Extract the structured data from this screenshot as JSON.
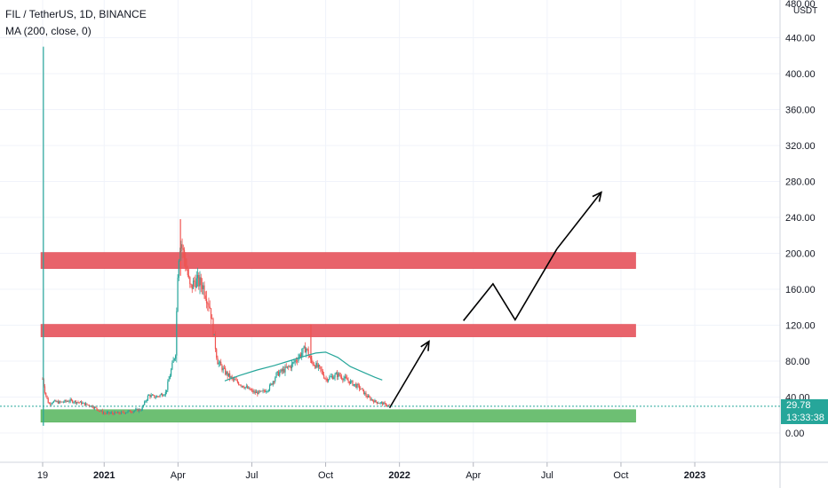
{
  "header": {
    "symbol_line": "FIL / TetherUS, 1D, BINANCE",
    "indicator_line": "MA (200, close, 0)"
  },
  "price_axis": {
    "unit": "USDT",
    "top_partial_label": "480.00"
  },
  "last_price": {
    "value": "29.78",
    "countdown": "13:33:38"
  },
  "colors": {
    "up": "#26a69a",
    "down": "#ef5350",
    "ma": "#26a69a",
    "resistance_zone": "#e8636b",
    "support_zone": "#6dbf73",
    "arrow": "#000000",
    "grid": "#f0f3fa",
    "axis_text": "#131722"
  },
  "chart_data": {
    "type": "candlestick",
    "title": "FIL / TetherUS, 1D, BINANCE",
    "ylim": [
      -20,
      485
    ],
    "y_ticks": [
      0,
      40,
      80,
      120,
      160,
      200,
      240,
      280,
      320,
      360,
      400,
      440
    ],
    "y_tick_labels": [
      "0.00",
      "40.00",
      "80.00",
      "120.00",
      "160.00",
      "200.00",
      "240.00",
      "280.00",
      "320.00",
      "360.00",
      "400.00",
      "440.00"
    ],
    "x_ticks": [
      "19",
      "2021",
      "Apr",
      "Jul",
      "Oct",
      "2022",
      "Apr",
      "Jul",
      "Oct",
      "2023"
    ],
    "x_tick_months": [
      9.5,
      12,
      15,
      18,
      21,
      24,
      27,
      30,
      33,
      36
    ],
    "price_path_months": [
      9.5,
      9.6,
      9.75,
      9.9,
      10.2,
      10.6,
      11.0,
      11.5,
      12.0,
      12.6,
      13.0,
      13.5,
      13.8,
      14.1,
      14.5,
      14.9,
      15.0,
      15.1,
      15.3,
      15.5,
      15.7,
      16.0,
      16.3,
      16.6,
      16.9,
      17.2,
      17.5,
      17.8,
      18.1,
      18.4,
      18.7,
      19.0,
      19.3,
      19.6,
      19.9,
      20.2,
      20.4,
      20.6,
      20.8,
      21.0,
      21.2,
      21.5,
      21.8,
      22.1,
      22.4,
      22.7,
      23.0,
      23.3,
      23.6
    ],
    "price_path_values": [
      60,
      45,
      32,
      35,
      34,
      36,
      34,
      30,
      22,
      22,
      24,
      26,
      42,
      40,
      45,
      90,
      190,
      215,
      190,
      160,
      170,
      165,
      140,
      80,
      68,
      60,
      55,
      50,
      45,
      45,
      50,
      65,
      70,
      75,
      85,
      95,
      80,
      75,
      70,
      60,
      62,
      65,
      60,
      55,
      50,
      40,
      35,
      33,
      30
    ],
    "spike_wicks": [
      {
        "month": 9.53,
        "high": 430,
        "low": 8
      },
      {
        "month": 15.1,
        "high": 238,
        "low": 175
      },
      {
        "month": 20.4,
        "high": 121,
        "low": 78
      }
    ],
    "ma200_months": [
      16.9,
      17.5,
      18.2,
      18.9,
      19.5,
      20.2,
      20.6,
      21.0,
      21.5,
      22.0,
      22.5,
      23.0,
      23.3
    ],
    "ma200_values": [
      58,
      64,
      70,
      75,
      80,
      86,
      89,
      90,
      84,
      74,
      68,
      62,
      59
    ],
    "zones": [
      {
        "type": "resistance",
        "from": 183,
        "to": 201
      },
      {
        "type": "resistance",
        "from": 107,
        "to": 121
      },
      {
        "type": "support",
        "from": 12,
        "to": 26
      }
    ],
    "projection_path_months": [
      23.6,
      25.2,
      26.6,
      27.8,
      28.7,
      30.4,
      32.2
    ],
    "projection_path_values": [
      28,
      102,
      125,
      166,
      126,
      205,
      268
    ],
    "last_price": 29.78
  }
}
